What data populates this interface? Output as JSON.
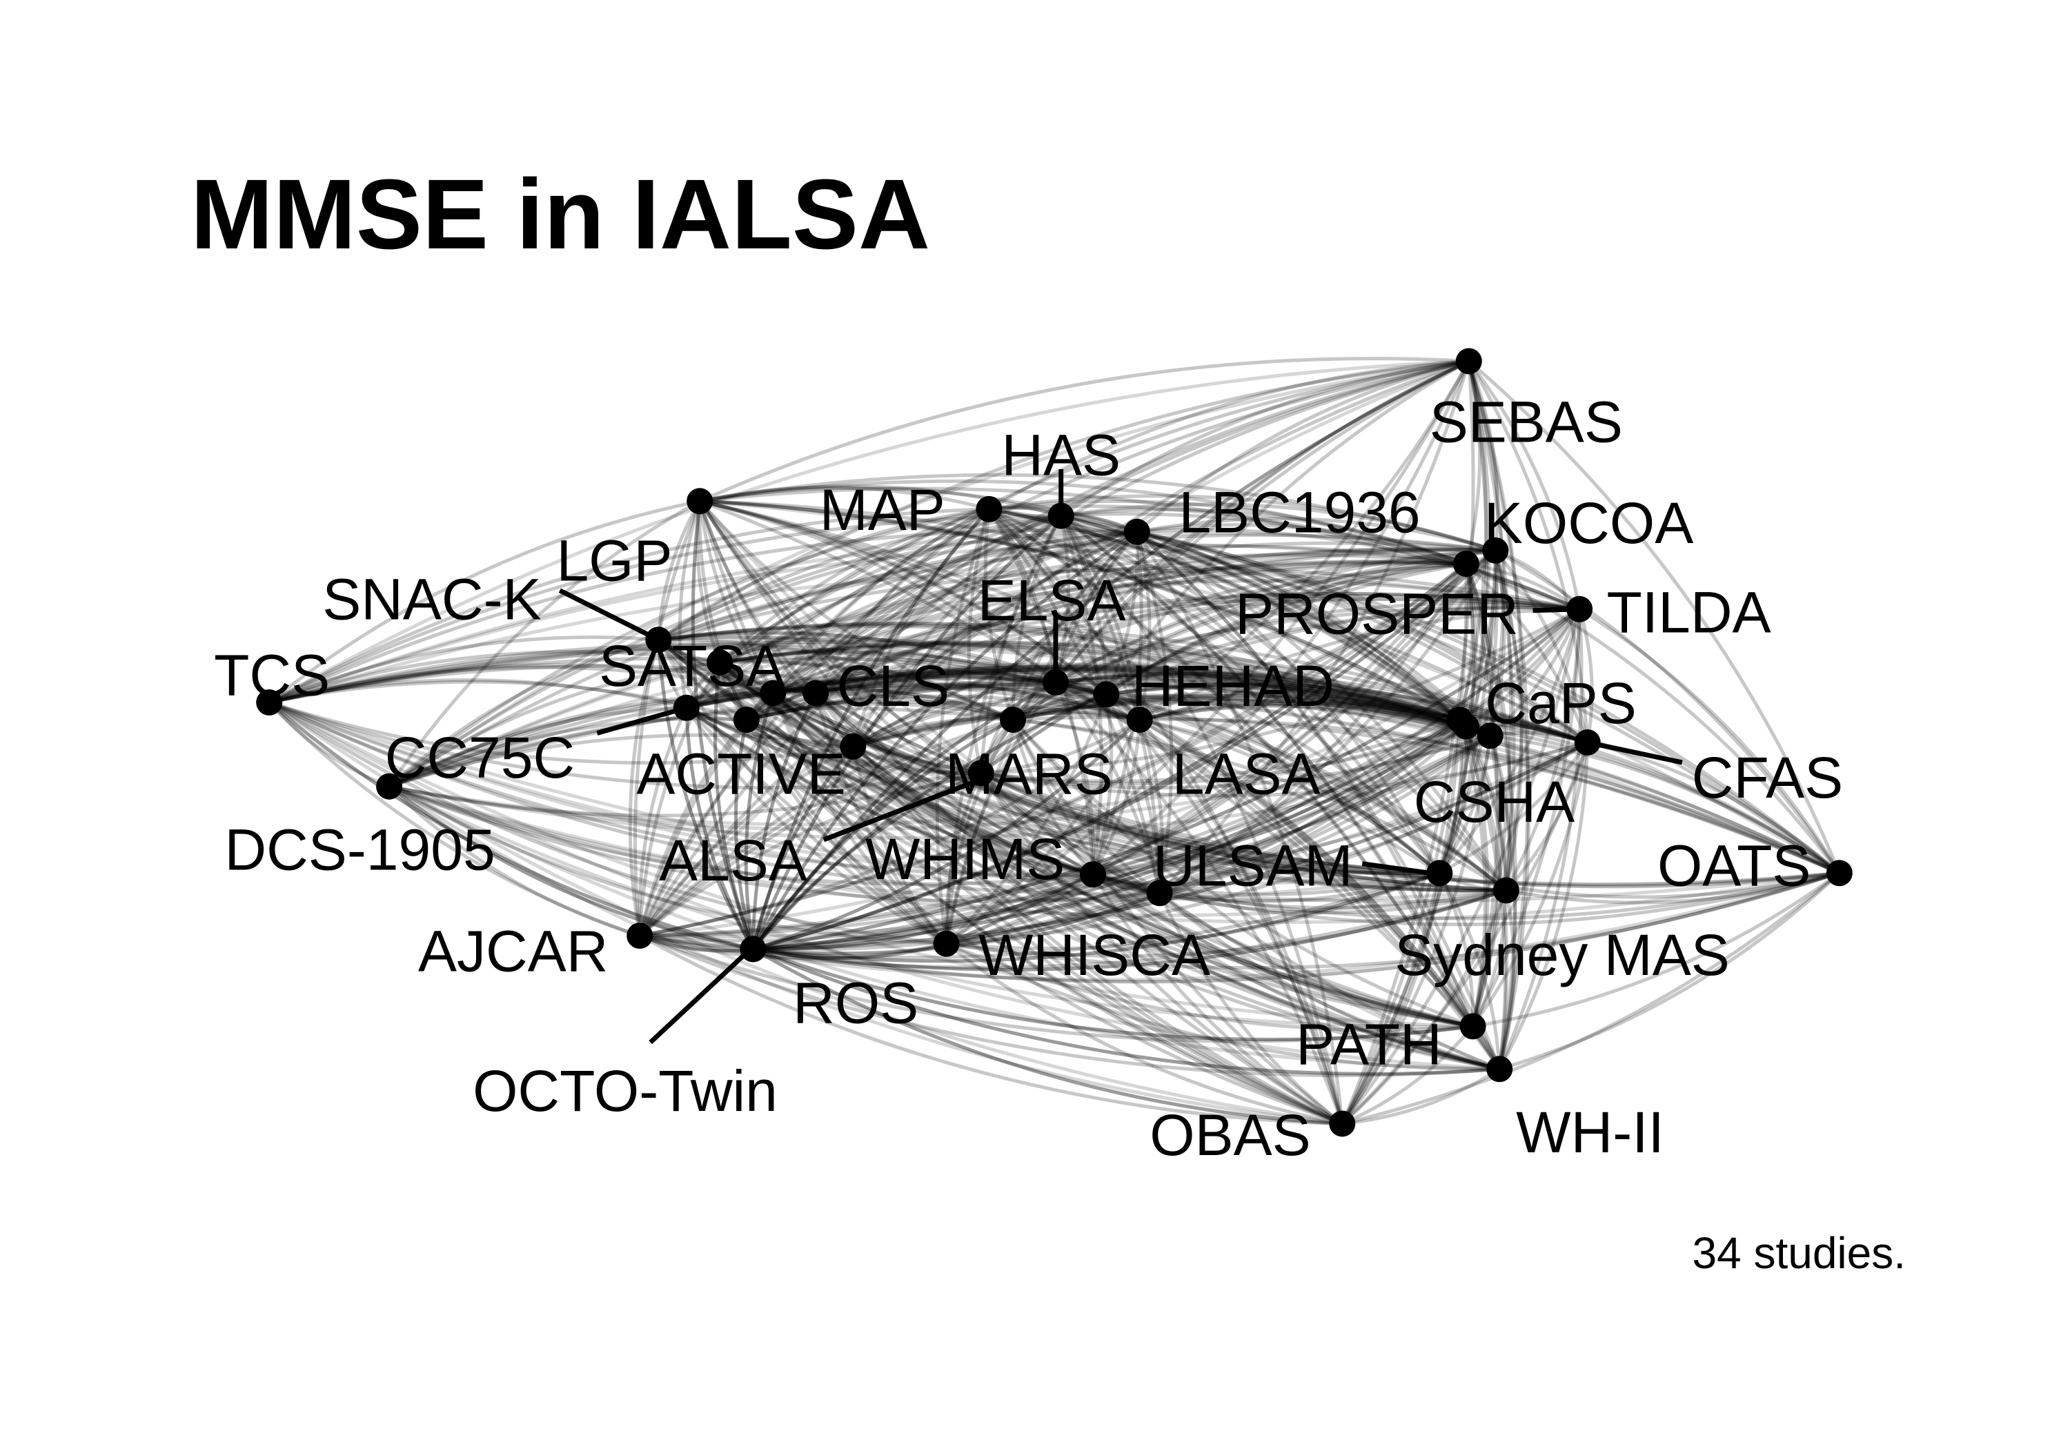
{
  "title": "MMSE in IALSA",
  "caption": "34 studies.",
  "colors": {
    "background": "#ffffff",
    "ink": "#000000"
  },
  "network": {
    "nodes": [
      {
        "id": "SEBAS",
        "label": "SEBAS"
      },
      {
        "id": "HAS",
        "label": "HAS"
      },
      {
        "id": "MAP",
        "label": "MAP"
      },
      {
        "id": "LBC1936",
        "label": "LBC1936"
      },
      {
        "id": "KOCOA",
        "label": "KOCOA"
      },
      {
        "id": "LGP",
        "label": "LGP"
      },
      {
        "id": "SNAC-K",
        "label": "SNAC-K"
      },
      {
        "id": "ELSA",
        "label": "ELSA"
      },
      {
        "id": "PROSPER",
        "label": "PROSPER"
      },
      {
        "id": "TILDA",
        "label": "TILDA"
      },
      {
        "id": "TCS",
        "label": "TCS"
      },
      {
        "id": "SATSA",
        "label": "SATSA"
      },
      {
        "id": "CLS",
        "label": "CLS"
      },
      {
        "id": "HEHAD",
        "label": "HEHAD"
      },
      {
        "id": "CaPS",
        "label": "CaPS"
      },
      {
        "id": "CC75C",
        "label": "CC75C"
      },
      {
        "id": "ACTIVE",
        "label": "ACTIVE"
      },
      {
        "id": "MARS",
        "label": "MARS"
      },
      {
        "id": "LASA",
        "label": "LASA"
      },
      {
        "id": "CFAS",
        "label": "CFAS"
      },
      {
        "id": "DCS-1905",
        "label": "DCS-1905"
      },
      {
        "id": "CSHA",
        "label": "CSHA"
      },
      {
        "id": "ALSA",
        "label": "ALSA"
      },
      {
        "id": "WHIMS",
        "label": "WHIMS"
      },
      {
        "id": "ULSAM",
        "label": "ULSAM"
      },
      {
        "id": "OATS",
        "label": "OATS"
      },
      {
        "id": "AJCAR",
        "label": "AJCAR"
      },
      {
        "id": "WHISCA",
        "label": "WHISCA"
      },
      {
        "id": "Sydney MAS",
        "label": "Sydney MAS"
      },
      {
        "id": "ROS",
        "label": "ROS"
      },
      {
        "id": "PATH",
        "label": "PATH"
      },
      {
        "id": "OCTO-Twin",
        "label": "OCTO-Twin"
      },
      {
        "id": "OBAS",
        "label": "OBAS"
      },
      {
        "id": "WH-II",
        "label": "WH-II"
      }
    ],
    "edges": "all-pairs"
  }
}
